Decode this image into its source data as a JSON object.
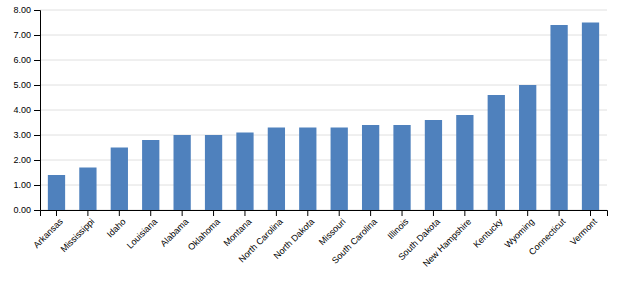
{
  "chart_data": {
    "type": "bar",
    "categories": [
      "Arkansas",
      "Mississippi",
      "Idaho",
      "Louisiana",
      "Alabama",
      "Oklahoma",
      "Montana",
      "North Carolina",
      "North Dakota",
      "Missouri",
      "South Carolina",
      "Illinois",
      "South Dakota",
      "New Hampshire",
      "Kentucky",
      "Wyoming",
      "Connecticut",
      "Vermont"
    ],
    "values": [
      1.4,
      1.7,
      2.5,
      2.8,
      3.0,
      3.0,
      3.1,
      3.3,
      3.3,
      3.3,
      3.4,
      3.4,
      3.6,
      3.8,
      4.6,
      5.0,
      7.4,
      7.5
    ],
    "color": "#4f81bd",
    "ylim": [
      0,
      8.0
    ],
    "yticks": [
      {
        "value": 0,
        "label": "0.00"
      },
      {
        "value": 1,
        "label": "1.00"
      },
      {
        "value": 2,
        "label": "2.00"
      },
      {
        "value": 3,
        "label": "3.00"
      },
      {
        "value": 4,
        "label": "4.00"
      },
      {
        "value": 5,
        "label": "5.00"
      },
      {
        "value": 6,
        "label": "6.00"
      },
      {
        "value": 7,
        "label": "7.00"
      },
      {
        "value": 8,
        "label": "8.00"
      }
    ],
    "grid": true
  }
}
